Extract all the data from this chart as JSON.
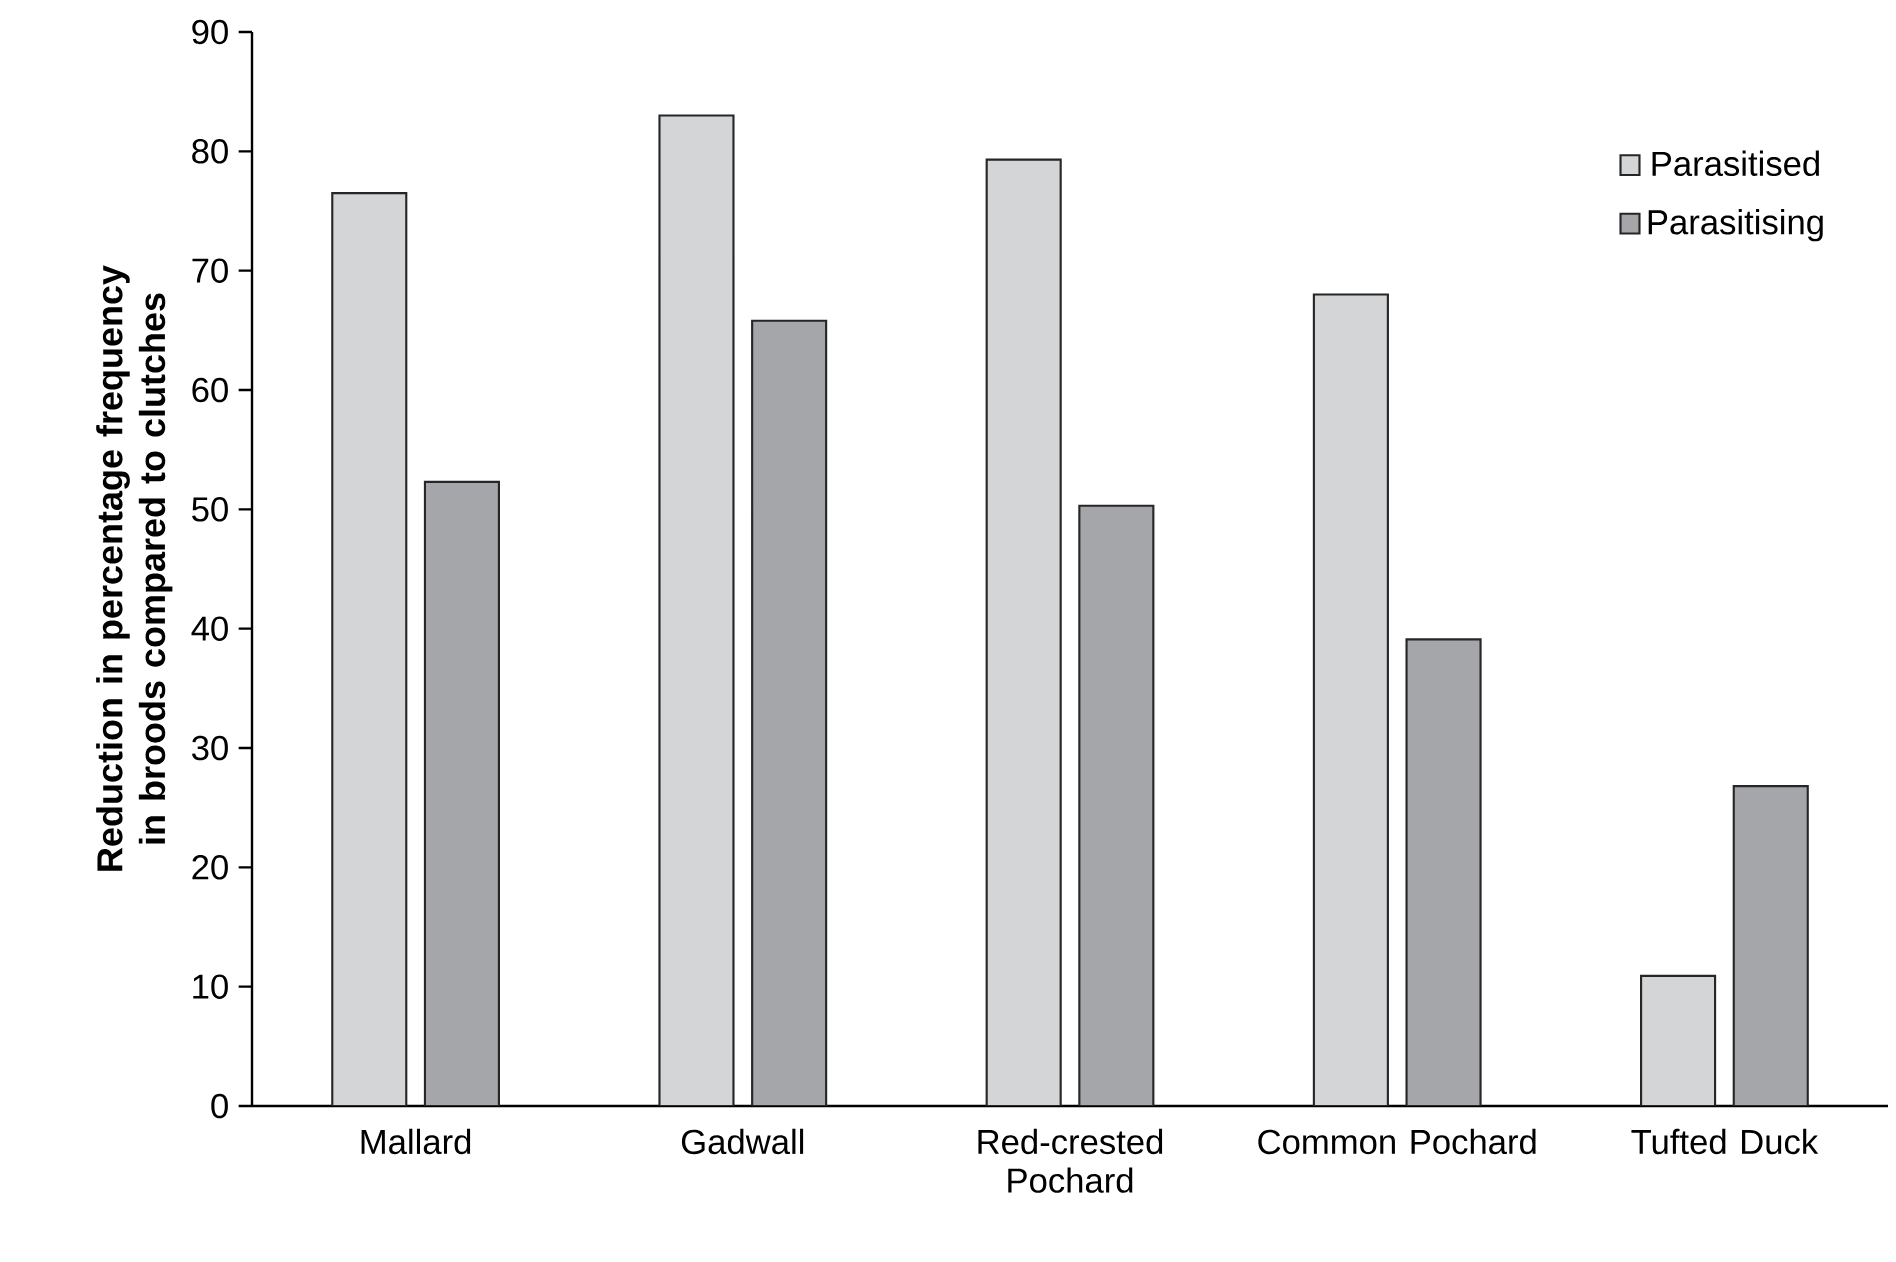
{
  "chart_data": {
    "type": "bar",
    "ylabel": "Reduction in percentage frequency in broods compared to clutches",
    "categories": [
      "Mallard",
      "Gadwall",
      "Red-crested Pochard",
      "Common Pochard",
      "Tufted Duck"
    ],
    "series": [
      {
        "name": "Parasitised",
        "color": "#d4d5d7",
        "values": [
          76.5,
          83.0,
          79.3,
          68.0,
          10.9
        ]
      },
      {
        "name": "Parasitising",
        "color": "#a5a6aa",
        "values": [
          52.3,
          65.8,
          50.3,
          39.1,
          26.8
        ]
      }
    ],
    "ylim": [
      0,
      90
    ],
    "yticks": [
      0,
      10,
      20,
      30,
      40,
      50,
      60,
      70,
      80,
      90
    ],
    "grid": false,
    "legend": "top right"
  }
}
